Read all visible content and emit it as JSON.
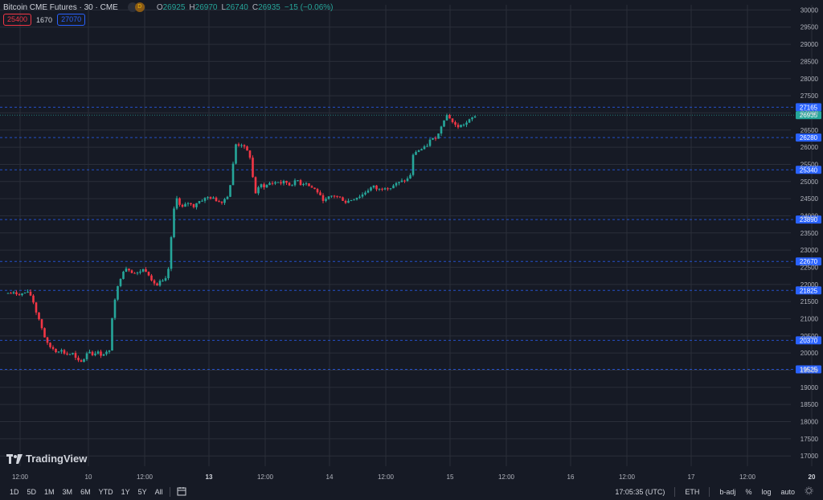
{
  "header": {
    "symbol": "Bitcoin CME Futures · 30 · CME",
    "badge_a": "",
    "badge_b": "D",
    "open_label": "O",
    "open_value": "26925",
    "high_label": "H",
    "high_value": "26970",
    "low_label": "L",
    "low_value": "26740",
    "close_label": "C",
    "close_value": "26935",
    "change": "−15 (−0.06%)"
  },
  "alerts": {
    "left": "25400",
    "middle": "1670",
    "right": "27070"
  },
  "brand": "TradingView",
  "colors": {
    "up": "#26a69a",
    "down": "#f23645",
    "grid": "#2a2e39",
    "bg": "#161a25",
    "hline": "#2962ff",
    "axis_text": "#b2b5be"
  },
  "bottom": {
    "timeframes": [
      "1D",
      "5D",
      "1M",
      "3M",
      "6M",
      "YTD",
      "1Y",
      "5Y",
      "All"
    ],
    "compare_icon": "calendar-range-icon",
    "time": "17:05:35 (UTC)",
    "session": "ETH",
    "adj": "b-adj",
    "percent": "%",
    "log": "log",
    "auto": "auto",
    "settings_icon": "gear-icon"
  },
  "chart_data": {
    "type": "candlestick",
    "y_ticks": [
      17000,
      17500,
      18000,
      18500,
      19000,
      19500,
      20000,
      20500,
      21000,
      21500,
      22000,
      22500,
      23000,
      23500,
      24000,
      24500,
      25000,
      25500,
      26000,
      26500,
      27000,
      27500,
      28000,
      28500,
      29000,
      29500,
      30000
    ],
    "ylim": [
      16700,
      30150
    ],
    "x_labels": [
      "12:00",
      "10",
      "12:00",
      "13",
      "12:00",
      "14",
      "12:00",
      "15",
      "12:00",
      "16",
      "12:00",
      "17",
      "12:00",
      "20"
    ],
    "x_label_bold": [
      "13",
      "20"
    ],
    "x_range": [
      0,
      14
    ],
    "x_label_positions": [
      0.3,
      2.0,
      3.4,
      5.0,
      6.4,
      8.0,
      9.4,
      11.0,
      12.4,
      14.0,
      15.4,
      17.0,
      18.4,
      20.0
    ],
    "horizontal_lines": [
      {
        "value": 27165,
        "label": "27165"
      },
      {
        "value": 26280,
        "label": "26280"
      },
      {
        "value": 25340,
        "label": "25340"
      },
      {
        "value": 23890,
        "label": "23890"
      },
      {
        "value": 22670,
        "label": "22670"
      },
      {
        "value": 21825,
        "label": "21825"
      },
      {
        "value": 20370,
        "label": "20370"
      },
      {
        "value": 19525,
        "label": "19525"
      }
    ],
    "last_price": {
      "value": 26935,
      "label": "26935"
    },
    "price_path": [
      [
        0.0,
        21750
      ],
      [
        0.35,
        21720
      ],
      [
        0.45,
        21780
      ],
      [
        0.55,
        21700
      ],
      [
        0.6,
        21600
      ],
      [
        0.7,
        21200
      ],
      [
        0.8,
        20900
      ],
      [
        0.9,
        20500
      ],
      [
        1.0,
        20200
      ],
      [
        1.1,
        20150
      ],
      [
        1.2,
        20050
      ],
      [
        1.3,
        20100
      ],
      [
        1.4,
        20000
      ],
      [
        1.5,
        19950
      ],
      [
        1.6,
        20000
      ],
      [
        1.7,
        19800
      ],
      [
        1.8,
        19700
      ],
      [
        1.9,
        19850
      ],
      [
        2.0,
        20100
      ],
      [
        2.1,
        19950
      ],
      [
        2.2,
        20050
      ],
      [
        2.3,
        19950
      ],
      [
        2.4,
        20000
      ],
      [
        2.55,
        20050
      ],
      [
        2.6,
        21300
      ],
      [
        2.7,
        21800
      ],
      [
        2.8,
        22200
      ],
      [
        2.9,
        22500
      ],
      [
        3.0,
        22450
      ],
      [
        3.1,
        22350
      ],
      [
        3.2,
        22300
      ],
      [
        3.3,
        22400
      ],
      [
        3.4,
        22450
      ],
      [
        3.5,
        22300
      ],
      [
        3.6,
        22100
      ],
      [
        3.7,
        21950
      ],
      [
        3.8,
        22100
      ],
      [
        3.9,
        22050
      ],
      [
        4.0,
        22500
      ],
      [
        4.05,
        23200
      ],
      [
        4.1,
        23900
      ],
      [
        4.15,
        24400
      ],
      [
        4.2,
        24550
      ],
      [
        4.3,
        24200
      ],
      [
        4.4,
        24300
      ],
      [
        4.5,
        24400
      ],
      [
        4.6,
        24250
      ],
      [
        4.7,
        24400
      ],
      [
        4.8,
        24450
      ],
      [
        4.9,
        24500
      ],
      [
        5.0,
        24550
      ],
      [
        5.1,
        24500
      ],
      [
        5.2,
        24450
      ],
      [
        5.3,
        24400
      ],
      [
        5.4,
        24500
      ],
      [
        5.5,
        24650
      ],
      [
        5.6,
        25500
      ],
      [
        5.65,
        26100
      ],
      [
        5.7,
        26050
      ],
      [
        5.8,
        26100
      ],
      [
        5.9,
        25950
      ],
      [
        6.0,
        25800
      ],
      [
        6.05,
        25600
      ],
      [
        6.1,
        25000
      ],
      [
        6.15,
        24650
      ],
      [
        6.2,
        24750
      ],
      [
        6.3,
        24900
      ],
      [
        6.4,
        24850
      ],
      [
        6.5,
        24950
      ],
      [
        6.6,
        24950
      ],
      [
        6.7,
        25000
      ],
      [
        6.8,
        24950
      ],
      [
        6.9,
        25000
      ],
      [
        7.0,
        24900
      ],
      [
        7.1,
        24950
      ],
      [
        7.2,
        25050
      ],
      [
        7.3,
        24900
      ],
      [
        7.4,
        25000
      ],
      [
        7.5,
        24850
      ],
      [
        7.6,
        24800
      ],
      [
        7.7,
        24700
      ],
      [
        7.8,
        24500
      ],
      [
        7.9,
        24450
      ],
      [
        8.0,
        24550
      ],
      [
        8.1,
        24600
      ],
      [
        8.2,
        24550
      ],
      [
        8.3,
        24500
      ],
      [
        8.4,
        24400
      ],
      [
        8.5,
        24450
      ],
      [
        8.6,
        24500
      ],
      [
        8.7,
        24550
      ],
      [
        8.8,
        24600
      ],
      [
        8.9,
        24700
      ],
      [
        9.0,
        24800
      ],
      [
        9.1,
        24850
      ],
      [
        9.2,
        24750
      ],
      [
        9.3,
        24800
      ],
      [
        9.4,
        24850
      ],
      [
        9.5,
        24800
      ],
      [
        9.6,
        24900
      ],
      [
        9.7,
        24950
      ],
      [
        9.8,
        25000
      ],
      [
        9.9,
        25050
      ],
      [
        10.0,
        25100
      ],
      [
        10.05,
        25600
      ],
      [
        10.1,
        25850
      ],
      [
        10.2,
        25900
      ],
      [
        10.3,
        25950
      ],
      [
        10.4,
        26000
      ],
      [
        10.5,
        26200
      ],
      [
        10.6,
        26250
      ],
      [
        10.7,
        26350
      ],
      [
        10.8,
        26700
      ],
      [
        10.9,
        26950
      ],
      [
        11.0,
        26850
      ],
      [
        11.1,
        26650
      ],
      [
        11.2,
        26600
      ],
      [
        11.3,
        26650
      ],
      [
        11.4,
        26700
      ],
      [
        11.5,
        26800
      ],
      [
        11.6,
        26900
      ],
      [
        11.65,
        26935
      ]
    ]
  }
}
